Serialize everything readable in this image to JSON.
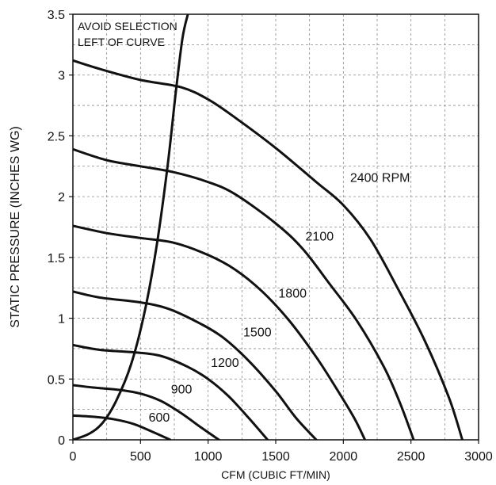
{
  "chart_data": {
    "type": "line",
    "title": "",
    "xlabel": "CFM (CUBIC FT/MIN)",
    "ylabel": "STATIC PRESSURE (INCHES WG)",
    "xlim": [
      0,
      3000
    ],
    "ylim": [
      0,
      3.5
    ],
    "xticks": [
      0,
      500,
      1000,
      1500,
      2000,
      2500,
      3000
    ],
    "yticks": [
      0,
      0.5,
      1,
      1.5,
      2,
      2.5,
      3,
      3.5
    ],
    "xtick_labels": [
      "0",
      "500",
      "1000",
      "1500",
      "2000",
      "2500",
      "3000"
    ],
    "ytick_labels": [
      "0",
      "0.5",
      "1",
      "1.5",
      "2",
      "2.5",
      "3",
      "3.5"
    ],
    "grid": true,
    "annotation": {
      "line1": "AVOID SELECTION",
      "line2": "LEFT OF CURVE"
    },
    "limit_curve": {
      "x": [
        0,
        120,
        220,
        320,
        430,
        530,
        620,
        700,
        760,
        810,
        850
      ],
      "y": [
        0,
        0.05,
        0.14,
        0.32,
        0.62,
        1.05,
        1.6,
        2.25,
        2.85,
        3.3,
        3.5
      ]
    },
    "series": [
      {
        "name": "2400 RPM",
        "x": [
          0,
          200,
          500,
          800,
          1000,
          1200,
          1500,
          1800,
          2000,
          2200,
          2400,
          2600,
          2780,
          2880
        ],
        "y": [
          3.12,
          3.05,
          2.96,
          2.9,
          2.8,
          2.65,
          2.4,
          2.12,
          1.93,
          1.65,
          1.25,
          0.82,
          0.35,
          0
        ]
      },
      {
        "name": "2100",
        "x": [
          0,
          250,
          500,
          750,
          1000,
          1200,
          1500,
          1700,
          1900,
          2100,
          2300,
          2420,
          2520
        ],
        "y": [
          2.39,
          2.3,
          2.25,
          2.2,
          2.12,
          2.02,
          1.78,
          1.57,
          1.28,
          0.98,
          0.6,
          0.3,
          0
        ]
      },
      {
        "name": "1800",
        "x": [
          0,
          250,
          500,
          750,
          1000,
          1200,
          1400,
          1600,
          1800,
          1950,
          2080,
          2160
        ],
        "y": [
          1.76,
          1.7,
          1.66,
          1.62,
          1.52,
          1.4,
          1.22,
          0.98,
          0.68,
          0.42,
          0.18,
          0
        ]
      },
      {
        "name": "1500",
        "x": [
          0,
          200,
          500,
          700,
          900,
          1100,
          1300,
          1500,
          1650,
          1800
        ],
        "y": [
          1.22,
          1.17,
          1.13,
          1.08,
          0.98,
          0.85,
          0.65,
          0.4,
          0.18,
          0
        ]
      },
      {
        "name": "1200",
        "x": [
          0,
          200,
          450,
          650,
          850,
          1000,
          1150,
          1300,
          1440
        ],
        "y": [
          0.78,
          0.74,
          0.72,
          0.69,
          0.6,
          0.5,
          0.36,
          0.18,
          0
        ]
      },
      {
        "name": "900",
        "x": [
          0,
          150,
          350,
          500,
          650,
          800,
          950,
          1080
        ],
        "y": [
          0.45,
          0.43,
          0.41,
          0.38,
          0.32,
          0.22,
          0.1,
          0
        ]
      },
      {
        "name": "600",
        "x": [
          0,
          150,
          300,
          450,
          600,
          720
        ],
        "y": [
          0.2,
          0.19,
          0.17,
          0.13,
          0.06,
          0
        ]
      }
    ],
    "series_labels": [
      {
        "text": "2400 RPM",
        "x": 2050,
        "y": 2.12
      },
      {
        "text": "2100",
        "x": 1720,
        "y": 1.64
      },
      {
        "text": "1800",
        "x": 1520,
        "y": 1.17
      },
      {
        "text": "1500",
        "x": 1260,
        "y": 0.85
      },
      {
        "text": "1200",
        "x": 1020,
        "y": 0.6
      },
      {
        "text": "900",
        "x": 725,
        "y": 0.38
      },
      {
        "text": "600",
        "x": 560,
        "y": 0.15
      }
    ],
    "colors": {
      "line": "#111111",
      "grid": "#8a8a8a",
      "background": "#ffffff"
    }
  }
}
